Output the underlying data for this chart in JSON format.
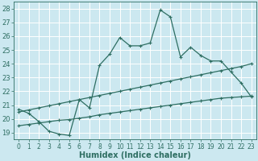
{
  "xlabel": "Humidex (Indice chaleur)",
  "bg_color": "#cce8f0",
  "grid_color": "#ffffff",
  "line_color": "#2e6e62",
  "xlim": [
    -0.5,
    23.5
  ],
  "ylim": [
    18.5,
    28.5
  ],
  "yticks": [
    19,
    20,
    21,
    22,
    23,
    24,
    25,
    26,
    27,
    28
  ],
  "xticks": [
    0,
    1,
    2,
    3,
    4,
    5,
    6,
    7,
    8,
    9,
    10,
    11,
    12,
    13,
    14,
    15,
    16,
    17,
    18,
    19,
    20,
    21,
    22,
    23
  ],
  "line1_x": [
    0,
    1,
    2,
    3,
    4,
    5,
    6,
    7,
    8,
    9,
    10,
    11,
    12,
    13,
    14,
    15,
    16,
    17,
    18,
    19,
    20,
    21,
    22,
    23
  ],
  "line1_y": [
    20.7,
    20.4,
    19.8,
    19.1,
    18.9,
    18.8,
    21.4,
    20.8,
    23.9,
    24.7,
    25.9,
    25.3,
    25.3,
    25.5,
    27.9,
    27.4,
    24.5,
    25.2,
    24.6,
    24.2,
    24.2,
    23.4,
    22.6,
    21.6
  ],
  "line2_x": [
    0,
    1,
    2,
    3,
    4,
    5,
    6,
    7,
    8,
    9,
    10,
    11,
    12,
    13,
    14,
    15,
    16,
    17,
    18,
    19,
    20,
    21,
    22,
    23
  ],
  "line2_y": [
    19.5,
    19.6,
    19.7,
    19.8,
    19.9,
    19.95,
    20.05,
    20.15,
    20.3,
    20.4,
    20.5,
    20.6,
    20.7,
    20.8,
    20.9,
    21.0,
    21.1,
    21.2,
    21.3,
    21.4,
    21.5,
    21.55,
    21.6,
    21.65
  ],
  "line3_x": [
    0,
    1,
    2,
    3,
    4,
    5,
    6,
    7,
    8,
    9,
    10,
    11,
    12,
    13,
    14,
    15,
    16,
    17,
    18,
    19,
    20,
    21,
    22,
    23
  ],
  "line3_y": [
    20.5,
    20.65,
    20.8,
    20.95,
    21.1,
    21.25,
    21.4,
    21.55,
    21.7,
    21.85,
    22.0,
    22.15,
    22.3,
    22.45,
    22.6,
    22.75,
    22.9,
    23.05,
    23.2,
    23.35,
    23.5,
    23.65,
    23.8,
    24.0
  ]
}
